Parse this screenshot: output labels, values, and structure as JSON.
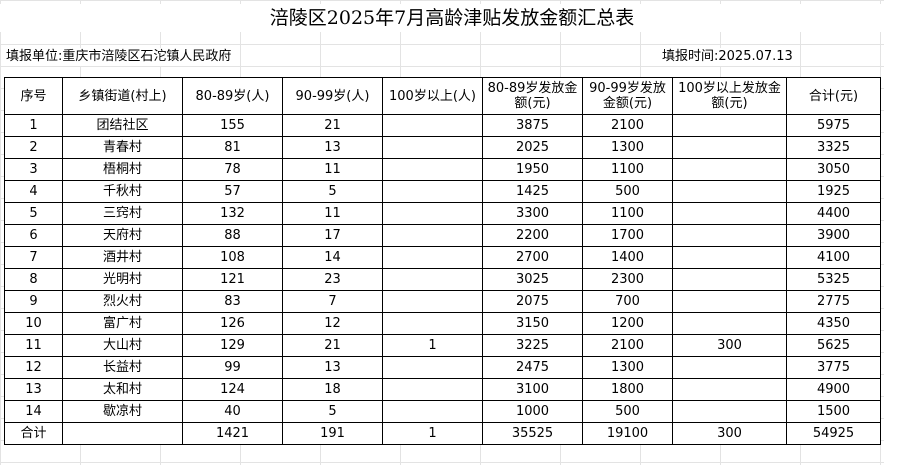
{
  "title": "涪陵区2025年7月高龄津贴发放金额汇总表",
  "unit_label": "填报单位:重庆市涪陵区石沱镇人民政府",
  "date_label": "填报时间:2025.07.13",
  "headers": [
    "序号",
    "乡镇街道(村上)",
    "80-89岁(人)",
    "90-99岁(人)",
    "100岁以上(人)",
    "80-89岁发放金额(元)",
    "90-99岁发放金额(元)",
    "100岁以上发放金额(元)",
    "合计(元)"
  ],
  "rows": [
    {
      "no": "1",
      "name": "团结社区",
      "a80": "155",
      "a90": "21",
      "a100": "",
      "m80": "3875",
      "m90": "2100",
      "m100": "",
      "total": "5975"
    },
    {
      "no": "2",
      "name": "青春村",
      "a80": "81",
      "a90": "13",
      "a100": "",
      "m80": "2025",
      "m90": "1300",
      "m100": "",
      "total": "3325"
    },
    {
      "no": "3",
      "name": "梧桐村",
      "a80": "78",
      "a90": "11",
      "a100": "",
      "m80": "1950",
      "m90": "1100",
      "m100": "",
      "total": "3050"
    },
    {
      "no": "4",
      "name": "千秋村",
      "a80": "57",
      "a90": "5",
      "a100": "",
      "m80": "1425",
      "m90": "500",
      "m100": "",
      "total": "1925"
    },
    {
      "no": "5",
      "name": "三窍村",
      "a80": "132",
      "a90": "11",
      "a100": "",
      "m80": "3300",
      "m90": "1100",
      "m100": "",
      "total": "4400"
    },
    {
      "no": "6",
      "name": "天府村",
      "a80": "88",
      "a90": "17",
      "a100": "",
      "m80": "2200",
      "m90": "1700",
      "m100": "",
      "total": "3900"
    },
    {
      "no": "7",
      "name": "酒井村",
      "a80": "108",
      "a90": "14",
      "a100": "",
      "m80": "2700",
      "m90": "1400",
      "m100": "",
      "total": "4100"
    },
    {
      "no": "8",
      "name": "光明村",
      "a80": "121",
      "a90": "23",
      "a100": "",
      "m80": "3025",
      "m90": "2300",
      "m100": "",
      "total": "5325"
    },
    {
      "no": "9",
      "name": "烈火村",
      "a80": "83",
      "a90": "7",
      "a100": "",
      "m80": "2075",
      "m90": "700",
      "m100": "",
      "total": "2775"
    },
    {
      "no": "10",
      "name": "富广村",
      "a80": "126",
      "a90": "12",
      "a100": "",
      "m80": "3150",
      "m90": "1200",
      "m100": "",
      "total": "4350"
    },
    {
      "no": "11",
      "name": "大山村",
      "a80": "129",
      "a90": "21",
      "a100": "1",
      "m80": "3225",
      "m90": "2100",
      "m100": "300",
      "total": "5625"
    },
    {
      "no": "12",
      "name": "长益村",
      "a80": "99",
      "a90": "13",
      "a100": "",
      "m80": "2475",
      "m90": "1300",
      "m100": "",
      "total": "3775"
    },
    {
      "no": "13",
      "name": "太和村",
      "a80": "124",
      "a90": "18",
      "a100": "",
      "m80": "3100",
      "m90": "1800",
      "m100": "",
      "total": "4900"
    },
    {
      "no": "14",
      "name": "歇凉村",
      "a80": "40",
      "a90": "5",
      "a100": "",
      "m80": "1000",
      "m90": "500",
      "m100": "",
      "total": "1500"
    }
  ],
  "footer": {
    "label": "合计",
    "name": "",
    "a80": "1421",
    "a90": "191",
    "a100": "1",
    "m80": "35525",
    "m90": "19100",
    "m100": "300",
    "total": "54925"
  }
}
